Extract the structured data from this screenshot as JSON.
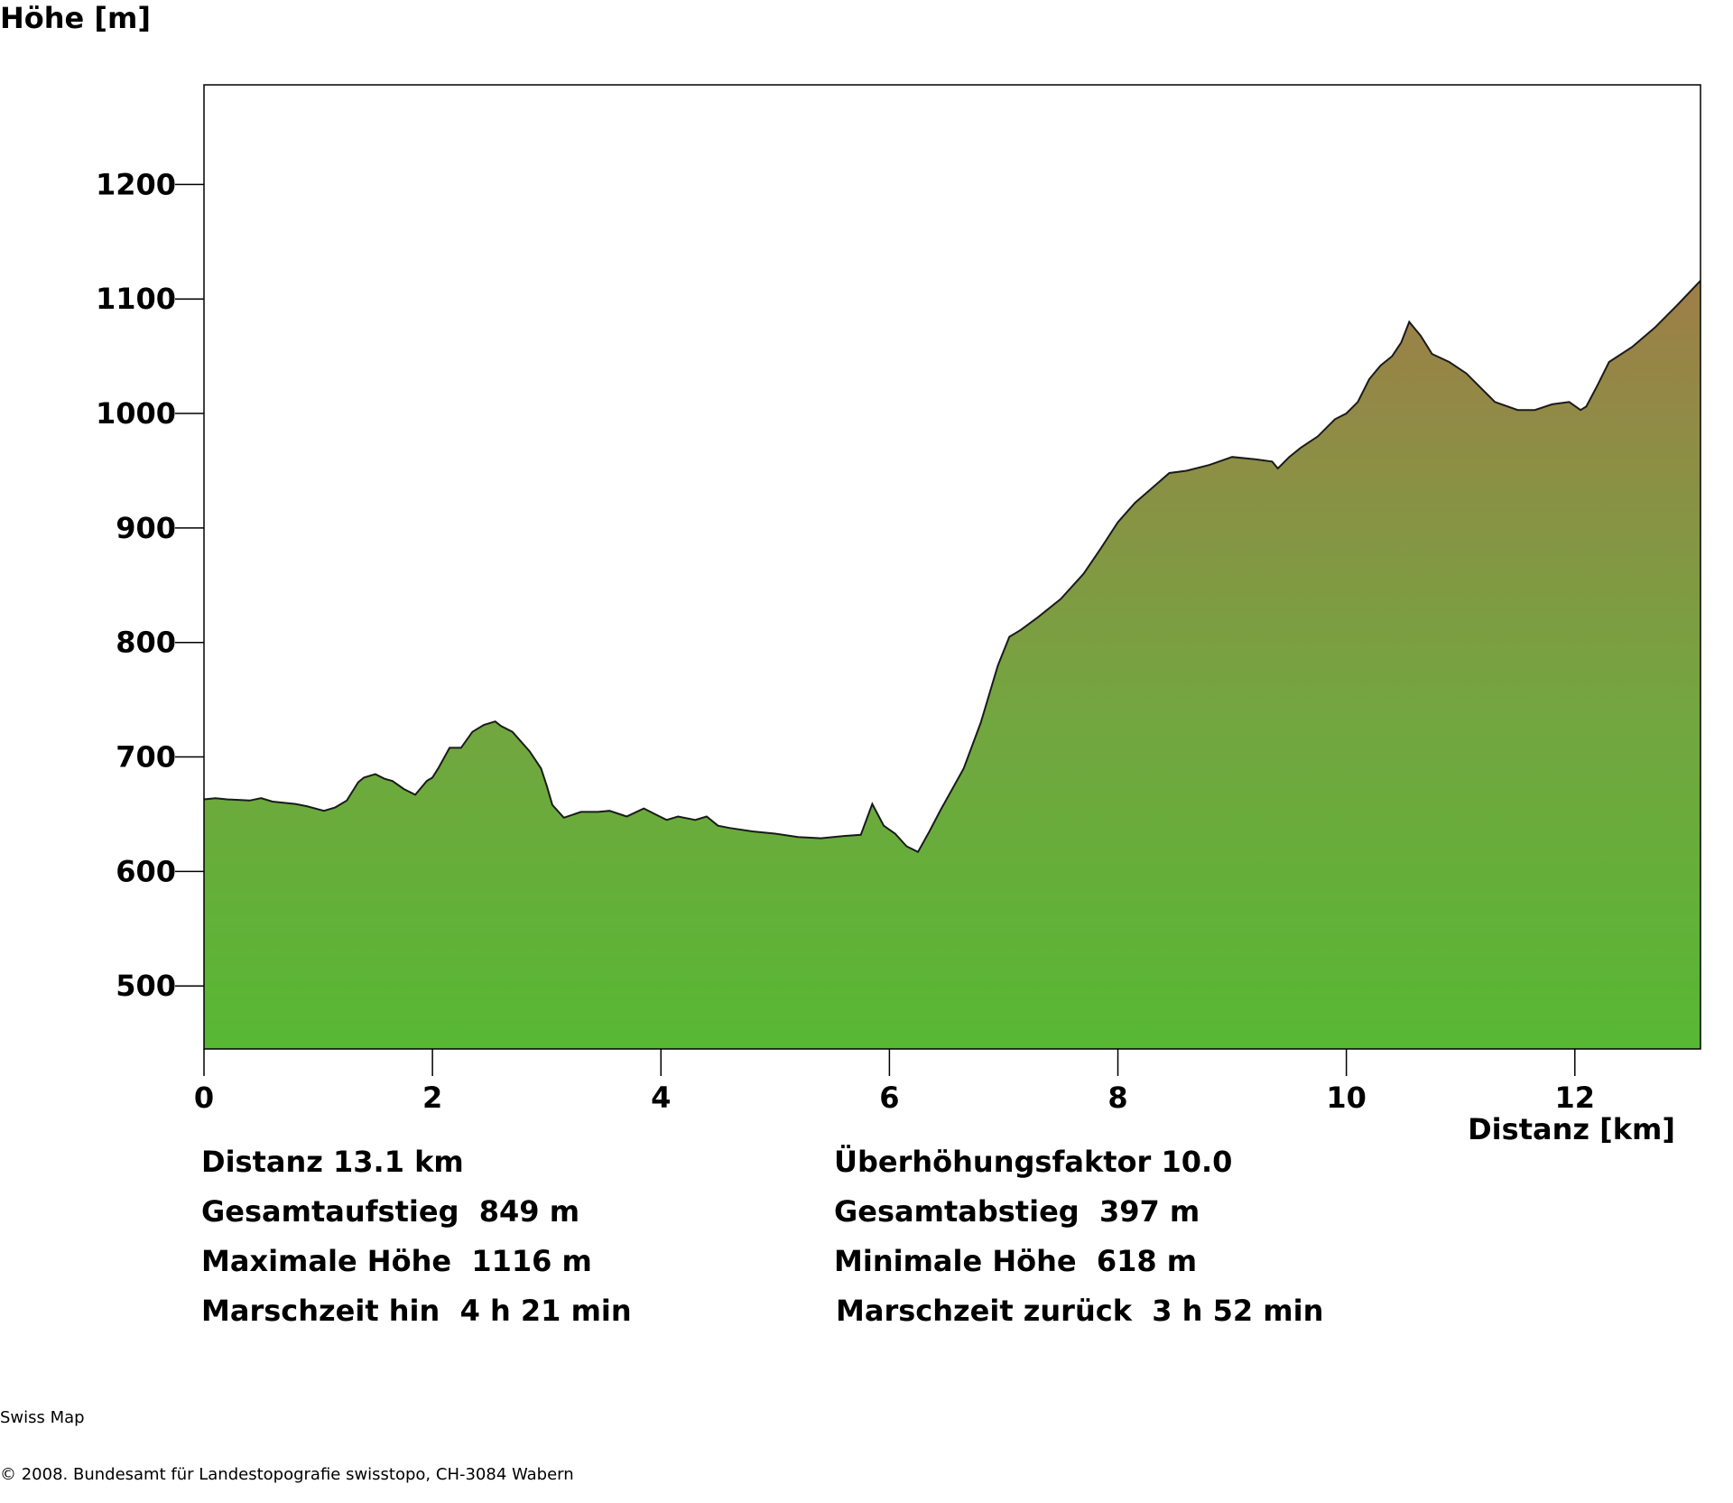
{
  "chart_data": {
    "type": "area",
    "ylabel": "Höhe [m]",
    "xlabel": "Distanz [km]",
    "xlim": [
      0,
      13.1
    ],
    "ylim": [
      445,
      1287
    ],
    "x_ticks": [
      0,
      2,
      4,
      6,
      8,
      10,
      12
    ],
    "y_ticks": [
      500,
      600,
      700,
      800,
      900,
      1000,
      1100,
      1200
    ],
    "fill_gradient": {
      "top": "#9e7e48",
      "middle": "#74a540",
      "bottom": "#57b833"
    },
    "series": [
      {
        "x": [
          0,
          0.1,
          0.2,
          0.4,
          0.5,
          0.6,
          0.8,
          0.9,
          1.05,
          1.15,
          1.25,
          1.35,
          1.4,
          1.5,
          1.58,
          1.65,
          1.75,
          1.85,
          1.95,
          2.0,
          2.05,
          2.15,
          2.25,
          2.35,
          2.45,
          2.55,
          2.6,
          2.7,
          2.85,
          2.95,
          3.0,
          3.05,
          3.15,
          3.3,
          3.45,
          3.55,
          3.7,
          3.85,
          3.95,
          4.05,
          4.15,
          4.3,
          4.4,
          4.5,
          4.6,
          4.8,
          5.0,
          5.2,
          5.4,
          5.6,
          5.75,
          5.85,
          5.95,
          6.05,
          6.15,
          6.25,
          6.35,
          6.45,
          6.55,
          6.65,
          6.8,
          6.95,
          7.05,
          7.15,
          7.3,
          7.5,
          7.7,
          7.85,
          8.0,
          8.15,
          8.3,
          8.45,
          8.6,
          8.8,
          9.0,
          9.2,
          9.35,
          9.4,
          9.5,
          9.6,
          9.75,
          9.9,
          10.0,
          10.1,
          10.2,
          10.3,
          10.4,
          10.48,
          10.55,
          10.65,
          10.75,
          10.9,
          11.05,
          11.15,
          11.3,
          11.5,
          11.65,
          11.8,
          11.95,
          12.05,
          12.1,
          12.2,
          12.3,
          12.5,
          12.7,
          12.9,
          13.1
        ],
        "y": [
          663,
          664,
          663,
          662,
          664,
          661,
          659,
          657,
          653,
          656,
          662,
          678,
          682,
          685,
          681,
          679,
          672,
          667,
          679,
          682,
          690,
          708,
          708,
          722,
          728,
          731,
          727,
          722,
          705,
          690,
          675,
          658,
          647,
          652,
          652,
          653,
          648,
          655,
          650,
          645,
          648,
          645,
          648,
          640,
          638,
          635,
          633,
          630,
          629,
          631,
          632,
          659,
          640,
          633,
          622,
          617,
          635,
          654,
          672,
          690,
          730,
          780,
          805,
          811,
          822,
          838,
          860,
          882,
          905,
          922,
          935,
          948,
          950,
          955,
          962,
          960,
          958,
          952,
          962,
          970,
          980,
          995,
          1000,
          1010,
          1030,
          1042,
          1050,
          1062,
          1080,
          1068,
          1052,
          1045,
          1035,
          1025,
          1010,
          1003,
          1003,
          1008,
          1010,
          1003,
          1006,
          1025,
          1045,
          1058,
          1075,
          1095,
          1116
        ]
      }
    ]
  },
  "stats": {
    "distanz": "Distanz 13.1 km",
    "ueberhoehung": "Überhöhungsfaktor 10.0",
    "gesamtaufstieg": "Gesamtaufstieg  849 m",
    "gesamtabstieg": "Gesamtabstieg  397 m",
    "max_hoehe": "Maximale Höhe  1116 m",
    "min_hoehe": "Minimale Höhe  618 m",
    "marschzeit_hin": "Marschzeit hin  4 h 21 min",
    "marschzeit_zurueck": "Marschzeit zurück  3 h 52 min"
  },
  "footer": {
    "line1": "Swiss Map",
    "line2": "© 2008. Bundesamt für Landestopografie swisstopo, CH-3084 Wabern"
  }
}
